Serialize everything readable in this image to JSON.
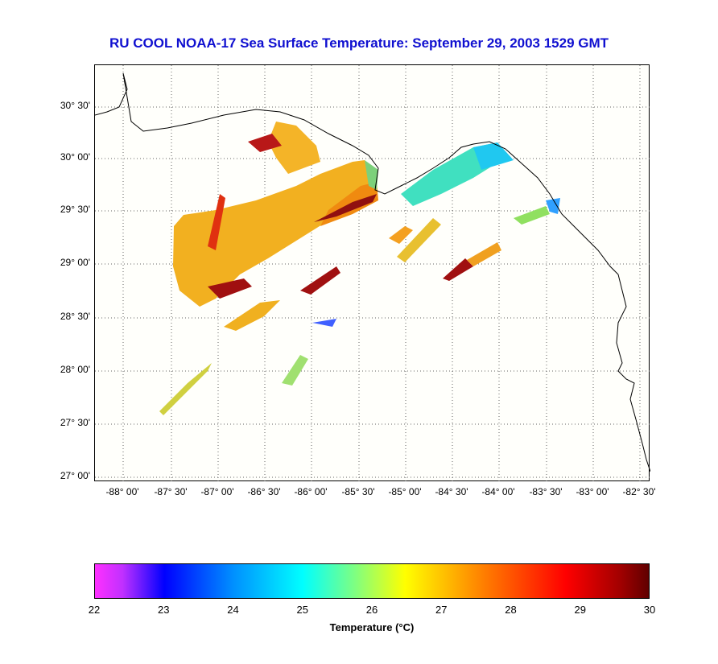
{
  "title": "RU COOL  NOAA-17  Sea Surface Temperature:  September 29, 2003 1529 GMT",
  "map": {
    "lat_labels": [
      "30° 30'",
      "30° 00'",
      "29° 30'",
      "29° 00'",
      "28° 30'",
      "28° 00'",
      "27° 30'",
      "27° 00'"
    ],
    "lon_labels": [
      "-88° 00'",
      "-87° 30'",
      "-87° 00'",
      "-86° 30'",
      "-86° 00'",
      "-85° 30'",
      "-85° 00'",
      "-84° 30'",
      "-84° 00'",
      "-83° 30'",
      "-83° 00'",
      "-82° 30'"
    ],
    "lat_range": [
      27.0,
      30.75
    ],
    "lon_range": [
      -88.0,
      -82.5
    ],
    "grid": "dotted"
  },
  "colorbar": {
    "ticks": [
      "22",
      "23",
      "24",
      "25",
      "26",
      "27",
      "28",
      "29",
      "30"
    ],
    "range": [
      22,
      30
    ],
    "label": "Temperature (°C)",
    "colors": [
      "#ff30ff",
      "#0000ff",
      "#00ffff",
      "#ffff00",
      "#ff0000",
      "#600000"
    ]
  }
}
